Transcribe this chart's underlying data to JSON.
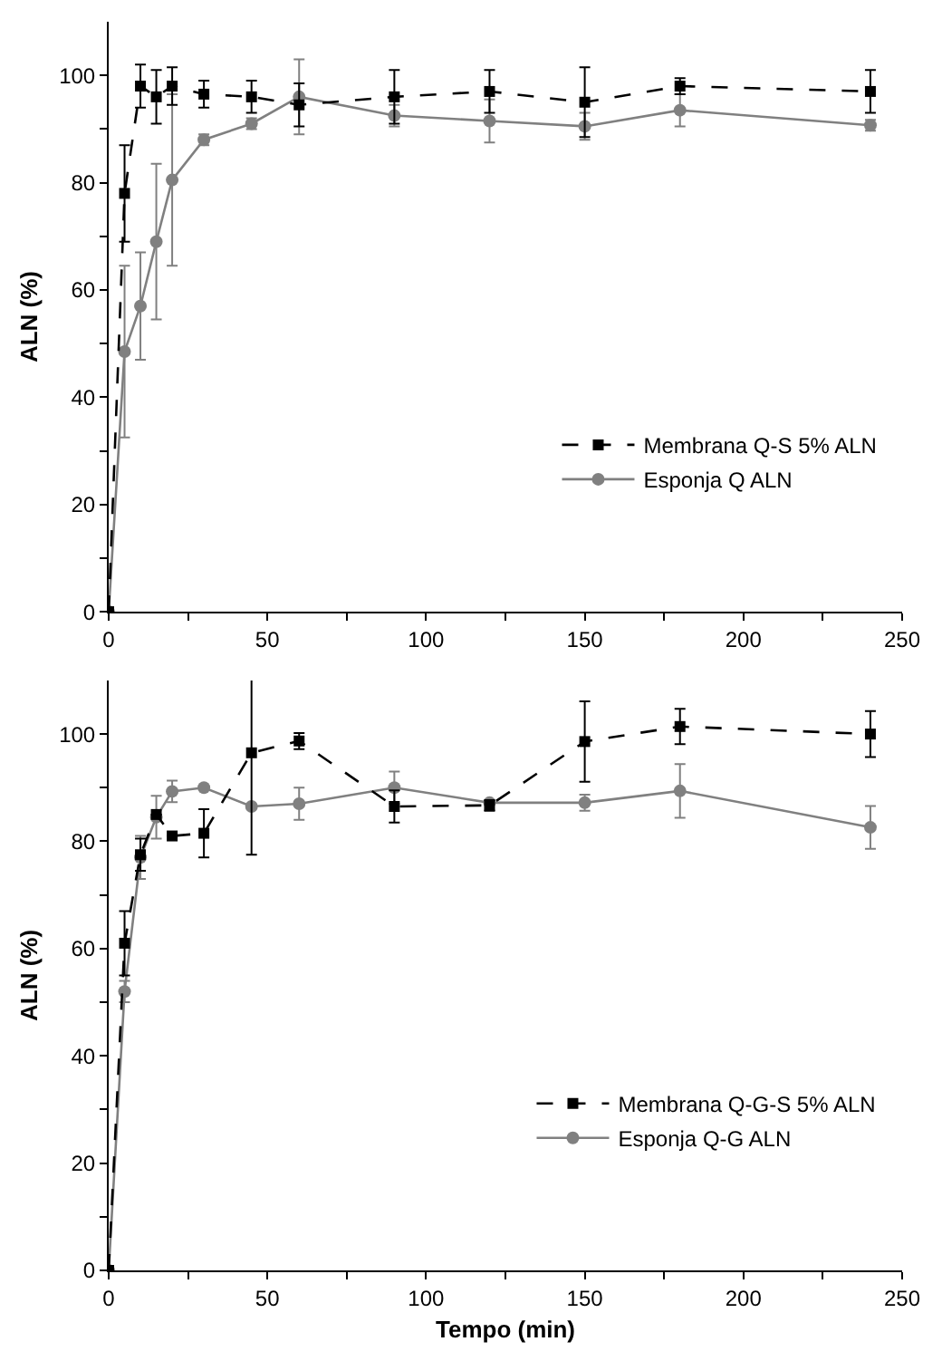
{
  "chart_data": [
    {
      "type": "line",
      "ylabel": "ALN (%)",
      "x": [
        0,
        5,
        10,
        15,
        20,
        30,
        45,
        60,
        90,
        120,
        150,
        180,
        240
      ],
      "xlim": [
        0,
        250
      ],
      "ylim": [
        0,
        110
      ],
      "xticks": [
        0,
        {
          "value": 25,
          "label": null
        },
        50,
        {
          "value": 75,
          "label": null
        },
        100,
        {
          "value": 125,
          "label": null
        },
        150,
        {
          "value": 175,
          "label": null
        },
        200,
        {
          "value": 225,
          "label": null
        },
        250
      ],
      "yticks": [
        0,
        {
          "value": 10,
          "label": null
        },
        20,
        {
          "value": 30,
          "label": null
        },
        40,
        {
          "value": 50,
          "label": null
        },
        60,
        {
          "value": 70,
          "label": null
        },
        80,
        {
          "value": 90,
          "label": null
        },
        100
      ],
      "legend": "bottom right",
      "series": [
        {
          "name": "Membrana Q-S 5% ALN",
          "color": "#000000",
          "marker": "square",
          "line_style": "dashed",
          "values": [
            0,
            78,
            98,
            96,
            98,
            96.5,
            96,
            94.5,
            96,
            97,
            95,
            98,
            97
          ],
          "errors": [
            null,
            9,
            4,
            5,
            3.5,
            2.5,
            3,
            4,
            5,
            4,
            6.5,
            1.5,
            4
          ]
        },
        {
          "name": "Esponja Q ALN",
          "color": "#808080",
          "marker": "circle",
          "line_style": "solid",
          "values": [
            0,
            48.5,
            57,
            69,
            80.5,
            88,
            91,
            96,
            92.5,
            91.5,
            90.5,
            93.5,
            90.7
          ],
          "errors": [
            null,
            16,
            10,
            14.5,
            16,
            1,
            1,
            7,
            2,
            4,
            2.5,
            3,
            1
          ]
        }
      ]
    },
    {
      "type": "line",
      "ylabel": "ALN (%)",
      "xlabel": "Tempo (min)",
      "x": [
        0,
        5,
        10,
        15,
        20,
        30,
        45,
        60,
        90,
        120,
        150,
        180,
        240
      ],
      "xlim": [
        0,
        250
      ],
      "ylim": [
        0,
        110
      ],
      "xticks": [
        0,
        {
          "value": 25,
          "label": null
        },
        50,
        {
          "value": 75,
          "label": null
        },
        100,
        {
          "value": 125,
          "label": null
        },
        150,
        {
          "value": 175,
          "label": null
        },
        200,
        {
          "value": 225,
          "label": null
        },
        250
      ],
      "yticks": [
        0,
        {
          "value": 10,
          "label": null
        },
        20,
        {
          "value": 30,
          "label": null
        },
        40,
        {
          "value": 50,
          "label": null
        },
        60,
        {
          "value": 70,
          "label": null
        },
        80,
        {
          "value": 90,
          "label": null
        },
        100
      ],
      "legend": "bottom right",
      "series": [
        {
          "name": "Membrana Q-G-S 5% ALN",
          "color": "#000000",
          "marker": "square",
          "line_style": "dashed",
          "values": [
            0,
            61,
            77.5,
            85,
            81,
            81.5,
            96.5,
            98.7,
            86.5,
            86.7,
            98.6,
            101.4,
            100
          ],
          "errors": [
            null,
            6,
            3,
            null,
            null,
            4.5,
            19,
            1.5,
            3,
            1,
            7.5,
            3.3,
            4.3
          ]
        },
        {
          "name": "Esponja Q-G ALN",
          "color": "#808080",
          "marker": "circle",
          "line_style": "solid",
          "values": [
            0,
            52,
            77,
            84.5,
            89.3,
            90,
            86.5,
            87,
            90,
            87.2,
            87.2,
            89.4,
            82.6
          ],
          "errors": [
            null,
            2,
            4,
            4,
            2,
            null,
            null,
            3,
            3,
            null,
            1.5,
            5,
            4
          ]
        }
      ]
    }
  ]
}
